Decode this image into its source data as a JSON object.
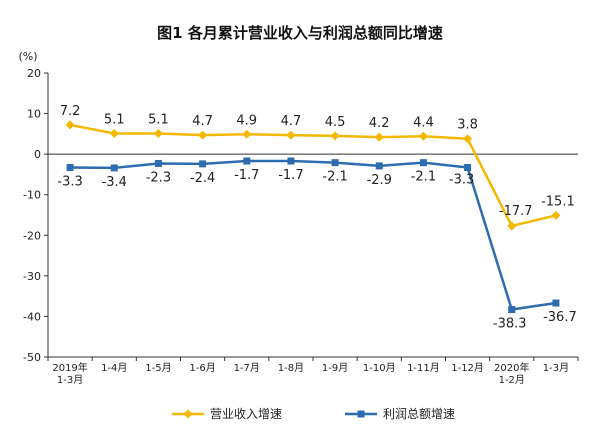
{
  "chart_data": {
    "type": "line",
    "title": "图1  各月累计营业收入与利润总额同比增速",
    "ylabel": "(%)",
    "xlabel": "",
    "ylim": [
      -50,
      20
    ],
    "yticks": [
      20,
      10,
      0,
      -10,
      -20,
      -30,
      -40,
      -50
    ],
    "categories": [
      "2019年\n1-3月",
      "1-4月",
      "1-5月",
      "1-6月",
      "1-7月",
      "1-8月",
      "1-9月",
      "1-10月",
      "1-11月",
      "1-12月",
      "2020年\n1-2月",
      "1-3月"
    ],
    "legend_position": "bottom",
    "grid": false,
    "series": [
      {
        "name": "营业收入增速",
        "color": "#f5b800",
        "marker": "diamond",
        "values": [
          7.2,
          5.1,
          5.1,
          4.7,
          4.9,
          4.7,
          4.5,
          4.2,
          4.4,
          3.8,
          -17.7,
          -15.1
        ],
        "labels": [
          "7.2",
          "5.1",
          "5.1",
          "4.7",
          "4.9",
          "4.7",
          "4.5",
          "4.2",
          "4.4",
          "3.8",
          "-17.7",
          "-15.1"
        ]
      },
      {
        "name": "利润总额增速",
        "color": "#2e6cb0",
        "marker": "square",
        "values": [
          -3.3,
          -3.4,
          -2.3,
          -2.4,
          -1.7,
          -1.7,
          -2.1,
          -2.9,
          -2.1,
          -3.3,
          -38.3,
          -36.7
        ],
        "labels": [
          "-3.3",
          "-3.4",
          "-2.3",
          "-2.4",
          "-1.7",
          "-1.7",
          "-2.1",
          "-2.9",
          "-2.1",
          "-3.3",
          "-38.3",
          "-36.7"
        ]
      }
    ]
  }
}
